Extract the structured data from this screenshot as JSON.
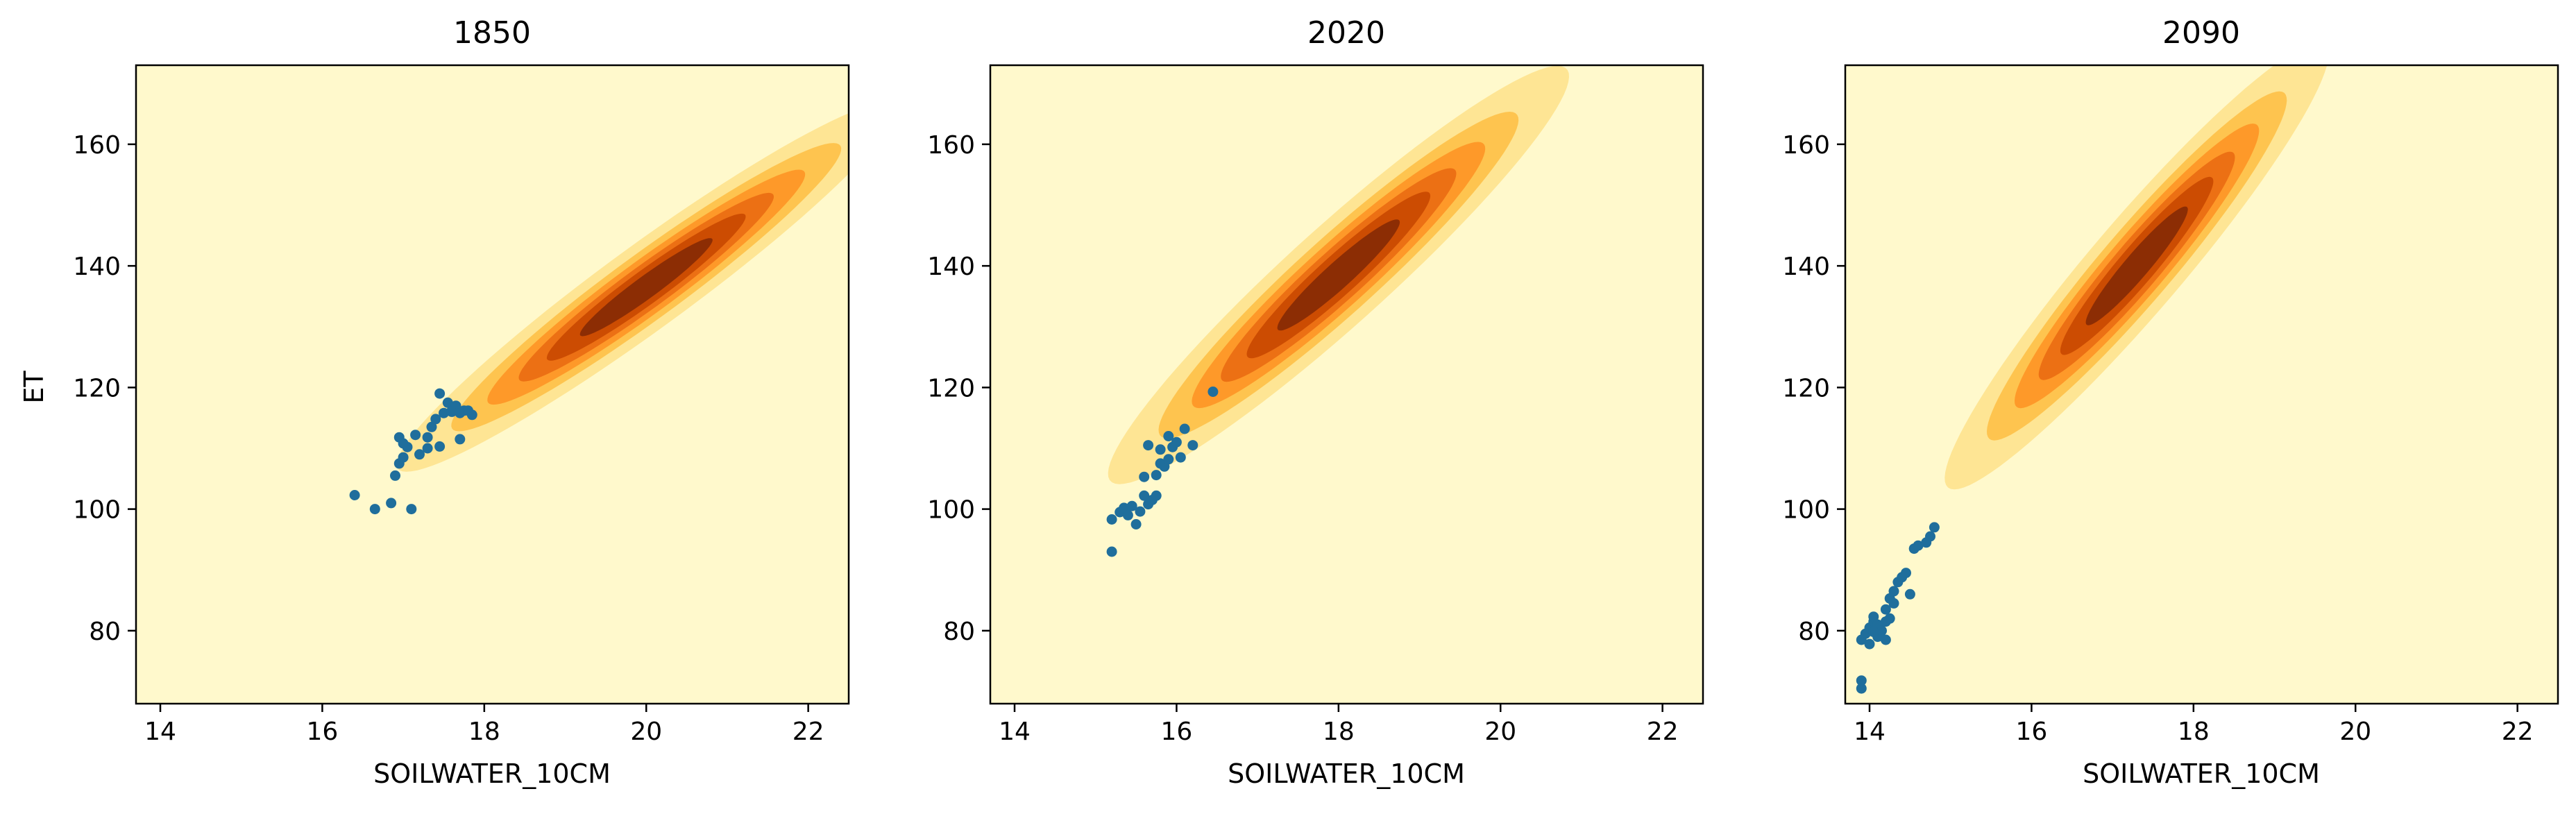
{
  "chart_data": [
    {
      "type": "scatter",
      "title": "1850",
      "xlabel": "SOILWATER_10CM",
      "ylabel": "ET",
      "xlim": [
        13.7,
        22.5
      ],
      "ylim": [
        68,
        173
      ],
      "xticks": [
        "14",
        "16",
        "18",
        "20",
        "22"
      ],
      "yticks": [
        "80",
        "100",
        "120",
        "140",
        "160"
      ],
      "grid": false,
      "background": "#fff9cc",
      "density": {
        "center": [
          20.0,
          136.5
        ],
        "sx": 1.3,
        "sy": 12.8,
        "rho": 0.96,
        "colors": [
          "#fff5c2",
          "#fee594",
          "#fec44f",
          "#fe9929",
          "#ec7014",
          "#cc4c02",
          "#8c2d04"
        ],
        "levels": [
          0.06,
          0.18,
          0.32,
          0.48,
          0.64,
          0.82
        ]
      },
      "point_color": "#1f6e9c",
      "points": [
        [
          16.4,
          102.3
        ],
        [
          16.65,
          100.0
        ],
        [
          16.85,
          101.0
        ],
        [
          17.1,
          100.0
        ],
        [
          16.9,
          105.5
        ],
        [
          16.95,
          107.5
        ],
        [
          17.0,
          108.5
        ],
        [
          17.05,
          110.2
        ],
        [
          16.95,
          111.8
        ],
        [
          17.0,
          110.8
        ],
        [
          17.15,
          112.2
        ],
        [
          17.2,
          109.0
        ],
        [
          17.3,
          110.0
        ],
        [
          17.3,
          111.8
        ],
        [
          17.35,
          113.5
        ],
        [
          17.4,
          114.8
        ],
        [
          17.45,
          110.3
        ],
        [
          17.5,
          115.8
        ],
        [
          17.45,
          119.0
        ],
        [
          17.55,
          117.5
        ],
        [
          17.6,
          116.2
        ],
        [
          17.65,
          117.0
        ],
        [
          17.7,
          115.8
        ],
        [
          17.75,
          116.2
        ],
        [
          17.8,
          116.2
        ],
        [
          17.85,
          115.5
        ],
        [
          17.7,
          111.5
        ],
        [
          17.6,
          116.0
        ]
      ]
    },
    {
      "type": "scatter",
      "title": "2020",
      "xlabel": "SOILWATER_10CM",
      "ylabel": "",
      "xlim": [
        13.7,
        22.5
      ],
      "ylim": [
        68,
        173
      ],
      "xticks": [
        "14",
        "16",
        "18",
        "20",
        "22"
      ],
      "yticks": [
        "80",
        "100",
        "120",
        "140",
        "160"
      ],
      "grid": false,
      "background": "#fff9cc",
      "density": {
        "center": [
          18.0,
          138.5
        ],
        "sx": 1.2,
        "sy": 14.5,
        "rho": 0.95,
        "colors": [
          "#fff5c2",
          "#fee594",
          "#fec44f",
          "#fe9929",
          "#ec7014",
          "#cc4c02",
          "#8c2d04"
        ],
        "levels": [
          0.06,
          0.18,
          0.32,
          0.48,
          0.64,
          0.82
        ]
      },
      "point_color": "#1f6e9c",
      "points": [
        [
          15.2,
          93.0
        ],
        [
          15.2,
          98.3
        ],
        [
          15.3,
          99.5
        ],
        [
          15.35,
          100.2
        ],
        [
          15.4,
          99.0
        ],
        [
          15.45,
          100.5
        ],
        [
          15.5,
          97.5
        ],
        [
          15.55,
          99.6
        ],
        [
          15.6,
          102.2
        ],
        [
          15.6,
          105.3
        ],
        [
          15.65,
          100.8
        ],
        [
          15.7,
          101.5
        ],
        [
          15.75,
          102.2
        ],
        [
          15.75,
          105.6
        ],
        [
          15.8,
          107.5
        ],
        [
          15.8,
          109.8
        ],
        [
          15.85,
          107.0
        ],
        [
          15.9,
          108.2
        ],
        [
          15.9,
          112.0
        ],
        [
          15.95,
          110.2
        ],
        [
          16.0,
          111.0
        ],
        [
          16.05,
          108.5
        ],
        [
          16.1,
          113.2
        ],
        [
          16.2,
          110.5
        ],
        [
          16.45,
          119.3
        ],
        [
          15.65,
          110.5
        ]
      ]
    },
    {
      "type": "scatter",
      "title": "2090",
      "xlabel": "SOILWATER_10CM",
      "ylabel": "",
      "xlim": [
        13.7,
        22.5
      ],
      "ylim": [
        68,
        173
      ],
      "xticks": [
        "14",
        "16",
        "18",
        "20",
        "22"
      ],
      "yticks": [
        "80",
        "100",
        "120",
        "140",
        "160"
      ],
      "grid": false,
      "background": "#fff9cc",
      "density": {
        "center": [
          17.3,
          140.0
        ],
        "sx": 1.0,
        "sy": 15.5,
        "rho": 0.95,
        "colors": [
          "#fff5c2",
          "#fee594",
          "#fec44f",
          "#fe9929",
          "#ec7014",
          "#cc4c02",
          "#8c2d04"
        ],
        "levels": [
          0.06,
          0.18,
          0.32,
          0.48,
          0.64,
          0.82
        ]
      },
      "point_color": "#1f6e9c",
      "points": [
        [
          13.9,
          70.5
        ],
        [
          13.9,
          71.8
        ],
        [
          13.9,
          78.5
        ],
        [
          13.95,
          79.5
        ],
        [
          14.0,
          77.8
        ],
        [
          14.0,
          80.5
        ],
        [
          14.05,
          81.5
        ],
        [
          14.05,
          82.3
        ],
        [
          14.1,
          79.0
        ],
        [
          14.1,
          81.0
        ],
        [
          14.15,
          80.0
        ],
        [
          14.2,
          81.5
        ],
        [
          14.2,
          83.5
        ],
        [
          14.25,
          82.0
        ],
        [
          14.2,
          78.5
        ],
        [
          14.25,
          85.3
        ],
        [
          14.3,
          84.5
        ],
        [
          14.3,
          86.5
        ],
        [
          14.35,
          88.0
        ],
        [
          14.4,
          88.8
        ],
        [
          14.45,
          89.5
        ],
        [
          14.5,
          86.0
        ],
        [
          14.55,
          93.5
        ],
        [
          14.6,
          94.0
        ],
        [
          14.7,
          94.5
        ],
        [
          14.75,
          95.5
        ],
        [
          14.8,
          97.0
        ],
        [
          14.05,
          79.8
        ]
      ]
    }
  ]
}
